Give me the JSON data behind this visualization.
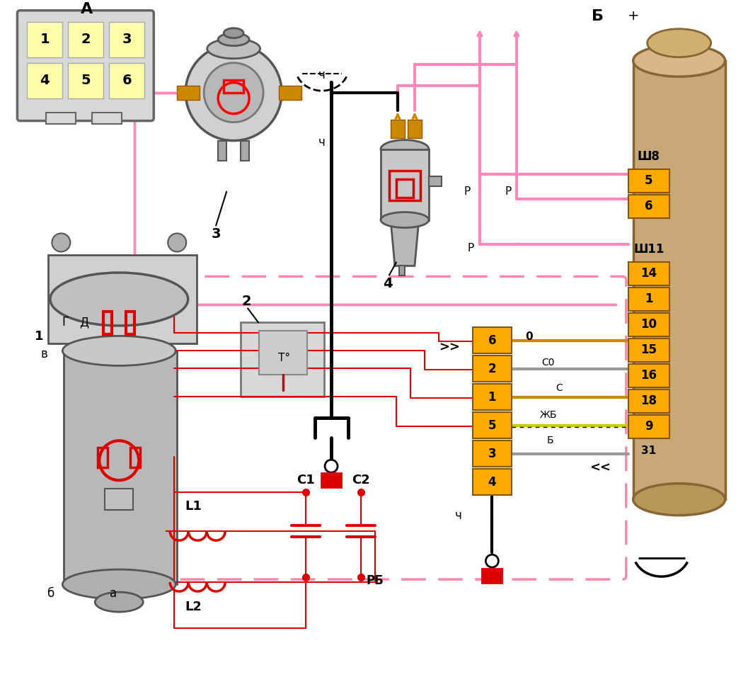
{
  "bg_color": "#ffffff",
  "fig_width": 10.57,
  "fig_height": 9.8,
  "connector_A_cells_row1": [
    "1",
    "2",
    "3"
  ],
  "connector_A_cells_row2": [
    "4",
    "5",
    "6"
  ],
  "connector_A_color": "#ffffaa",
  "sh8_cells": [
    "5",
    "6"
  ],
  "sh11_cells": [
    "14",
    "1",
    "10",
    "15",
    "16",
    "18",
    "9"
  ],
  "cb_cells": [
    "6",
    "2",
    "1",
    "5",
    "3",
    "4"
  ],
  "connector_color": "#ffaa00",
  "pink": "#ff88bb",
  "red": "#dd0000",
  "orange": "#cc8800",
  "gray_wire": "#999999",
  "black_wire": "#111111",
  "motor_gray": "#c0c0c0",
  "motor_dark": "#888888"
}
